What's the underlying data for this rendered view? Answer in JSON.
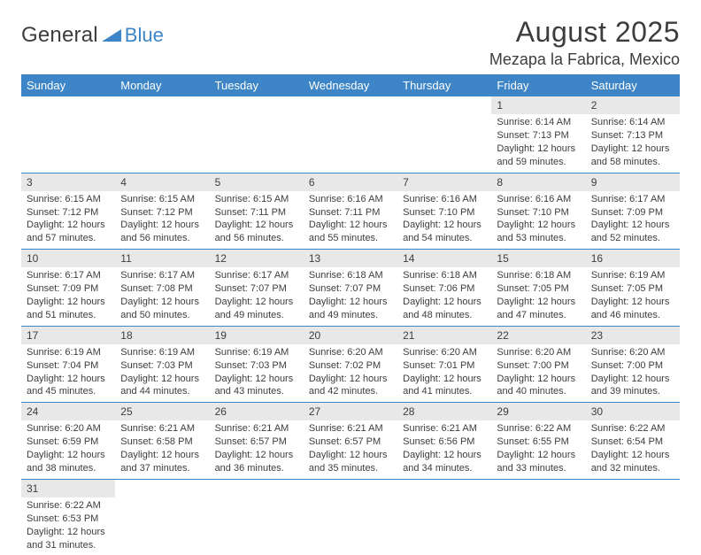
{
  "colors": {
    "header_bg": "#3d85c6",
    "header_text": "#ffffff",
    "daynum_bg": "#e8e8e8",
    "text": "#3d3d3d",
    "page_bg": "#ffffff"
  },
  "typography": {
    "title_fontsize": 32,
    "location_fontsize": 18,
    "weekday_fontsize": 13,
    "cell_fontsize": 11
  },
  "logo": {
    "general": "General",
    "blue": "Blue",
    "triangle_fill": "#3d85c6"
  },
  "title": "August 2025",
  "location": "Mezapa la Fabrica, Mexico",
  "weekdays": [
    "Sunday",
    "Monday",
    "Tuesday",
    "Wednesday",
    "Thursday",
    "Friday",
    "Saturday"
  ],
  "layout": {
    "columns": 7,
    "rows": 6,
    "start_weekday_index": 5
  },
  "days": [
    {
      "n": "1",
      "sunrise": "Sunrise: 6:14 AM",
      "sunset": "Sunset: 7:13 PM",
      "daylight": "Daylight: 12 hours and 59 minutes."
    },
    {
      "n": "2",
      "sunrise": "Sunrise: 6:14 AM",
      "sunset": "Sunset: 7:13 PM",
      "daylight": "Daylight: 12 hours and 58 minutes."
    },
    {
      "n": "3",
      "sunrise": "Sunrise: 6:15 AM",
      "sunset": "Sunset: 7:12 PM",
      "daylight": "Daylight: 12 hours and 57 minutes."
    },
    {
      "n": "4",
      "sunrise": "Sunrise: 6:15 AM",
      "sunset": "Sunset: 7:12 PM",
      "daylight": "Daylight: 12 hours and 56 minutes."
    },
    {
      "n": "5",
      "sunrise": "Sunrise: 6:15 AM",
      "sunset": "Sunset: 7:11 PM",
      "daylight": "Daylight: 12 hours and 56 minutes."
    },
    {
      "n": "6",
      "sunrise": "Sunrise: 6:16 AM",
      "sunset": "Sunset: 7:11 PM",
      "daylight": "Daylight: 12 hours and 55 minutes."
    },
    {
      "n": "7",
      "sunrise": "Sunrise: 6:16 AM",
      "sunset": "Sunset: 7:10 PM",
      "daylight": "Daylight: 12 hours and 54 minutes."
    },
    {
      "n": "8",
      "sunrise": "Sunrise: 6:16 AM",
      "sunset": "Sunset: 7:10 PM",
      "daylight": "Daylight: 12 hours and 53 minutes."
    },
    {
      "n": "9",
      "sunrise": "Sunrise: 6:17 AM",
      "sunset": "Sunset: 7:09 PM",
      "daylight": "Daylight: 12 hours and 52 minutes."
    },
    {
      "n": "10",
      "sunrise": "Sunrise: 6:17 AM",
      "sunset": "Sunset: 7:09 PM",
      "daylight": "Daylight: 12 hours and 51 minutes."
    },
    {
      "n": "11",
      "sunrise": "Sunrise: 6:17 AM",
      "sunset": "Sunset: 7:08 PM",
      "daylight": "Daylight: 12 hours and 50 minutes."
    },
    {
      "n": "12",
      "sunrise": "Sunrise: 6:17 AM",
      "sunset": "Sunset: 7:07 PM",
      "daylight": "Daylight: 12 hours and 49 minutes."
    },
    {
      "n": "13",
      "sunrise": "Sunrise: 6:18 AM",
      "sunset": "Sunset: 7:07 PM",
      "daylight": "Daylight: 12 hours and 49 minutes."
    },
    {
      "n": "14",
      "sunrise": "Sunrise: 6:18 AM",
      "sunset": "Sunset: 7:06 PM",
      "daylight": "Daylight: 12 hours and 48 minutes."
    },
    {
      "n": "15",
      "sunrise": "Sunrise: 6:18 AM",
      "sunset": "Sunset: 7:05 PM",
      "daylight": "Daylight: 12 hours and 47 minutes."
    },
    {
      "n": "16",
      "sunrise": "Sunrise: 6:19 AM",
      "sunset": "Sunset: 7:05 PM",
      "daylight": "Daylight: 12 hours and 46 minutes."
    },
    {
      "n": "17",
      "sunrise": "Sunrise: 6:19 AM",
      "sunset": "Sunset: 7:04 PM",
      "daylight": "Daylight: 12 hours and 45 minutes."
    },
    {
      "n": "18",
      "sunrise": "Sunrise: 6:19 AM",
      "sunset": "Sunset: 7:03 PM",
      "daylight": "Daylight: 12 hours and 44 minutes."
    },
    {
      "n": "19",
      "sunrise": "Sunrise: 6:19 AM",
      "sunset": "Sunset: 7:03 PM",
      "daylight": "Daylight: 12 hours and 43 minutes."
    },
    {
      "n": "20",
      "sunrise": "Sunrise: 6:20 AM",
      "sunset": "Sunset: 7:02 PM",
      "daylight": "Daylight: 12 hours and 42 minutes."
    },
    {
      "n": "21",
      "sunrise": "Sunrise: 6:20 AM",
      "sunset": "Sunset: 7:01 PM",
      "daylight": "Daylight: 12 hours and 41 minutes."
    },
    {
      "n": "22",
      "sunrise": "Sunrise: 6:20 AM",
      "sunset": "Sunset: 7:00 PM",
      "daylight": "Daylight: 12 hours and 40 minutes."
    },
    {
      "n": "23",
      "sunrise": "Sunrise: 6:20 AM",
      "sunset": "Sunset: 7:00 PM",
      "daylight": "Daylight: 12 hours and 39 minutes."
    },
    {
      "n": "24",
      "sunrise": "Sunrise: 6:20 AM",
      "sunset": "Sunset: 6:59 PM",
      "daylight": "Daylight: 12 hours and 38 minutes."
    },
    {
      "n": "25",
      "sunrise": "Sunrise: 6:21 AM",
      "sunset": "Sunset: 6:58 PM",
      "daylight": "Daylight: 12 hours and 37 minutes."
    },
    {
      "n": "26",
      "sunrise": "Sunrise: 6:21 AM",
      "sunset": "Sunset: 6:57 PM",
      "daylight": "Daylight: 12 hours and 36 minutes."
    },
    {
      "n": "27",
      "sunrise": "Sunrise: 6:21 AM",
      "sunset": "Sunset: 6:57 PM",
      "daylight": "Daylight: 12 hours and 35 minutes."
    },
    {
      "n": "28",
      "sunrise": "Sunrise: 6:21 AM",
      "sunset": "Sunset: 6:56 PM",
      "daylight": "Daylight: 12 hours and 34 minutes."
    },
    {
      "n": "29",
      "sunrise": "Sunrise: 6:22 AM",
      "sunset": "Sunset: 6:55 PM",
      "daylight": "Daylight: 12 hours and 33 minutes."
    },
    {
      "n": "30",
      "sunrise": "Sunrise: 6:22 AM",
      "sunset": "Sunset: 6:54 PM",
      "daylight": "Daylight: 12 hours and 32 minutes."
    },
    {
      "n": "31",
      "sunrise": "Sunrise: 6:22 AM",
      "sunset": "Sunset: 6:53 PM",
      "daylight": "Daylight: 12 hours and 31 minutes."
    }
  ]
}
